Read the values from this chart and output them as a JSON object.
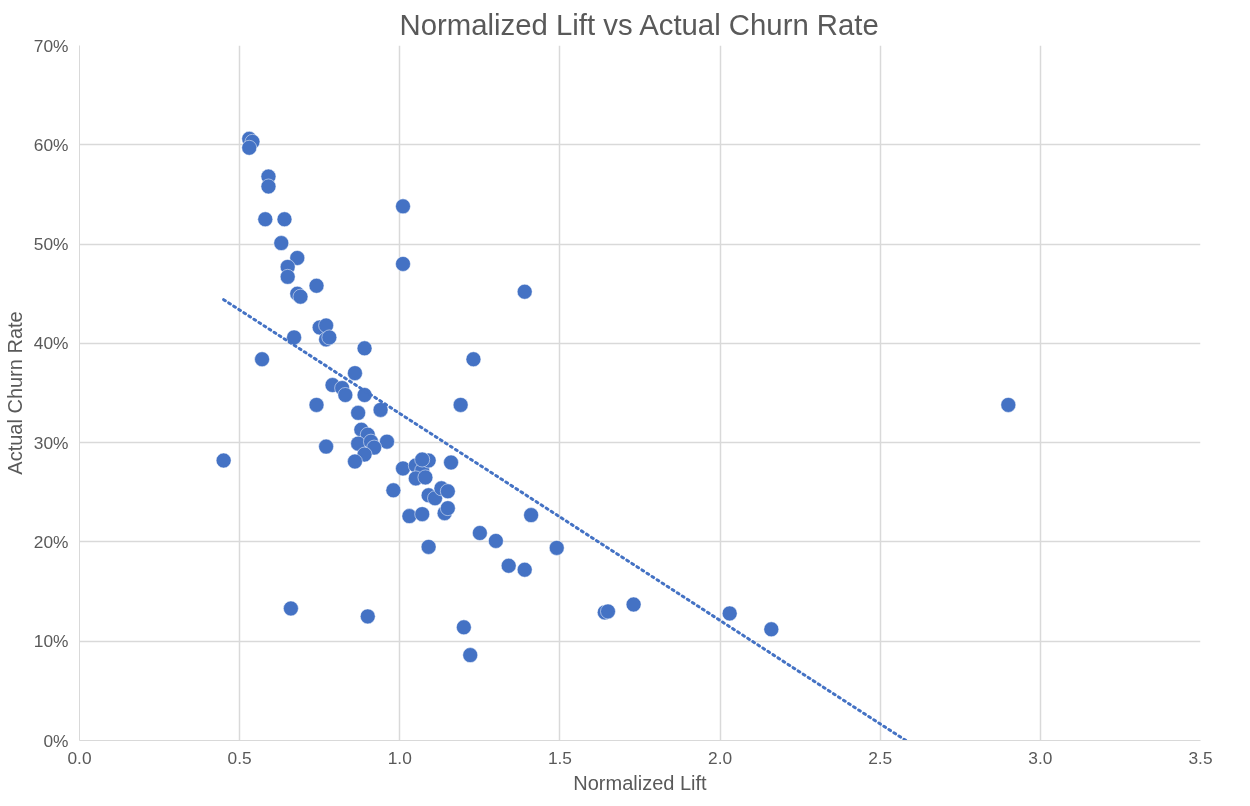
{
  "chart_data": {
    "type": "scatter",
    "title": "Normalized Lift vs Actual Churn Rate",
    "xlabel": "Normalized Lift",
    "ylabel": "Actual Churn Rate",
    "grid": true,
    "xlim": [
      0,
      3.5
    ],
    "ylim": [
      0,
      70
    ],
    "xticks": [
      {
        "value": 0,
        "label": "0.0"
      },
      {
        "value": 0.5,
        "label": "0.5"
      },
      {
        "value": 1,
        "label": "1.0"
      },
      {
        "value": 1.5,
        "label": "1.5"
      },
      {
        "value": 2,
        "label": "2.0"
      },
      {
        "value": 2.5,
        "label": "2.5"
      },
      {
        "value": 3,
        "label": "3.0"
      },
      {
        "value": 3.5,
        "label": "3.5"
      }
    ],
    "yticks": [
      {
        "value": 0,
        "label": "0%"
      },
      {
        "value": 10,
        "label": "10%"
      },
      {
        "value": 20,
        "label": "20%"
      },
      {
        "value": 30,
        "label": "30%"
      },
      {
        "value": 40,
        "label": "40%"
      },
      {
        "value": 50,
        "label": "50%"
      },
      {
        "value": 60,
        "label": "60%"
      },
      {
        "value": 70,
        "label": "70%"
      }
    ],
    "series": [
      {
        "color": "#4472c4",
        "marker": "circle",
        "x": [
          0.53,
          0.54,
          0.53,
          0.59,
          0.59,
          0.58,
          0.64,
          0.63,
          0.68,
          0.65,
          0.65,
          0.68,
          0.69,
          0.74,
          0.75,
          0.77,
          0.77,
          0.78,
          0.67,
          0.57,
          0.89,
          0.89,
          0.86,
          0.79,
          0.82,
          0.83,
          0.74,
          0.87,
          0.94,
          0.88,
          0.9,
          0.87,
          0.91,
          0.96,
          0.92,
          0.89,
          0.86,
          0.77,
          0.45,
          1.01,
          0.98,
          1.03,
          1.05,
          1.07,
          1.05,
          1.09,
          1.07,
          1.08,
          1.09,
          1.11,
          1.07,
          1.09,
          1.13,
          1.15,
          1.14,
          1.15,
          1.16,
          1.19,
          1.23,
          1.01,
          1.01,
          1.39,
          1.25,
          1.3,
          1.34,
          1.39,
          1.41,
          1.49,
          1.64,
          1.65,
          1.73,
          2.03,
          2.16,
          2.9,
          0.66,
          0.9,
          1.2,
          1.22
        ],
        "values": [
          60.6,
          60.3,
          59.7,
          56.8,
          55.8,
          52.5,
          52.5,
          50.1,
          48.6,
          47.7,
          46.7,
          45.0,
          44.7,
          45.8,
          41.6,
          41.8,
          40.4,
          40.6,
          40.6,
          38.4,
          39.5,
          34.8,
          37.0,
          35.8,
          35.5,
          34.8,
          33.8,
          33.0,
          33.3,
          31.3,
          30.8,
          29.9,
          30.1,
          30.1,
          29.5,
          28.8,
          28.1,
          29.6,
          28.2,
          27.4,
          25.2,
          22.6,
          27.7,
          27.2,
          26.4,
          28.2,
          28.3,
          26.5,
          24.7,
          24.4,
          22.8,
          19.5,
          25.4,
          25.1,
          22.9,
          23.4,
          28.0,
          33.8,
          38.4,
          53.8,
          48.0,
          45.2,
          20.9,
          20.1,
          17.6,
          17.2,
          22.7,
          19.4,
          12.9,
          13.0,
          13.7,
          12.8,
          11.2,
          33.8,
          13.3,
          12.5,
          11.4,
          8.6
        ]
      },
      {
        "type": "line",
        "color": "#4472c4",
        "line_style": "dotted",
        "marker": "none",
        "x": [
          0.45,
          2.58
        ],
        "values": [
          44.4,
          0
        ]
      }
    ]
  }
}
